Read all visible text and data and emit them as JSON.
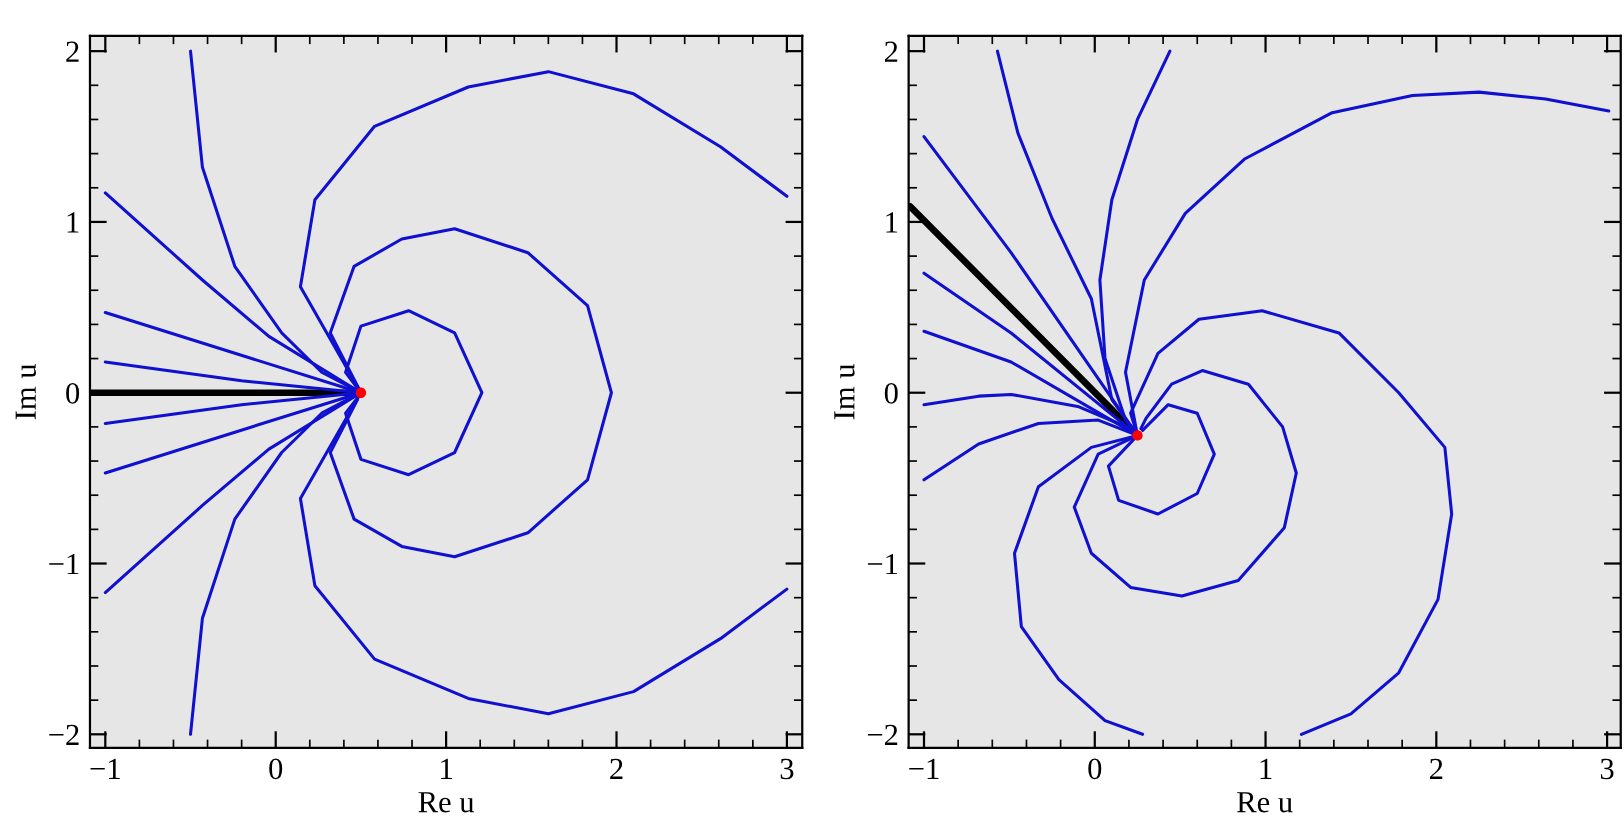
{
  "chart_data": [
    {
      "type": "line",
      "xlabel": "Re u",
      "ylabel": "Im u",
      "xlim": [
        -1.09,
        3.09
      ],
      "ylim": [
        -2.08,
        2.09
      ],
      "xticks": [
        -1,
        0,
        1,
        2,
        3
      ],
      "yticks": [
        -2,
        -1,
        0,
        1,
        2
      ],
      "series": [
        {
          "color": "#000000",
          "x": [
            -1.09,
            0.5
          ],
          "values": [
            0,
            0
          ]
        },
        {
          "color": "#1010d0",
          "x": [
            0.5,
            -0.2,
            -1
          ],
          "values": [
            0,
            0.07,
            0.18
          ]
        },
        {
          "color": "#1010d0",
          "x": [
            0.5,
            -0.3,
            -1
          ],
          "values": [
            0,
            0.25,
            0.47
          ]
        },
        {
          "color": "#1010d0",
          "x": [
            0.5,
            -0.04,
            -0.43,
            -1
          ],
          "values": [
            0,
            0.33,
            0.66,
            1.17
          ]
        },
        {
          "color": "#1010d0",
          "x": [
            0.5,
            0.27,
            0.035,
            -0.24,
            -0.43,
            -0.5
          ],
          "values": [
            0,
            0.12,
            0.35,
            0.74,
            1.32,
            2.0
          ]
        },
        {
          "color": "#1010d0",
          "x": [
            0.5,
            -0.2,
            -1
          ],
          "values": [
            0,
            -0.07,
            -0.18
          ]
        },
        {
          "color": "#1010d0",
          "x": [
            0.5,
            -0.3,
            -1
          ],
          "values": [
            0,
            -0.25,
            -0.47
          ]
        },
        {
          "color": "#1010d0",
          "x": [
            0.5,
            -0.04,
            -0.43,
            -1
          ],
          "values": [
            0,
            -0.33,
            -0.66,
            -1.17
          ]
        },
        {
          "color": "#1010d0",
          "x": [
            0.5,
            0.27,
            0.035,
            -0.24,
            -0.43,
            -0.5
          ],
          "values": [
            0,
            -0.12,
            -0.35,
            -0.74,
            -1.32,
            -2.0
          ]
        },
        {
          "color": "#1010d0",
          "x": [
            3.0,
            2.61,
            2.1,
            1.6,
            1.13,
            0.58,
            0.23,
            0.145,
            0.5,
            0.145,
            0.23,
            0.58,
            1.13,
            1.6,
            2.1,
            2.61,
            3.0
          ],
          "values": [
            1.15,
            1.44,
            1.75,
            1.88,
            1.79,
            1.56,
            1.13,
            0.62,
            0,
            -0.62,
            -1.13,
            -1.56,
            -1.79,
            -1.88,
            -1.75,
            -1.44,
            -1.15
          ]
        },
        {
          "color": "#1010d0",
          "x": [
            0.5,
            0.32,
            0.46,
            0.74,
            1.05,
            1.48,
            1.83,
            1.97,
            1.83,
            1.48,
            1.05,
            0.74,
            0.46,
            0.32,
            0.48
          ],
          "values": [
            0,
            0.35,
            0.74,
            0.9,
            0.96,
            0.82,
            0.51,
            0,
            -0.51,
            -0.82,
            -0.96,
            -0.9,
            -0.74,
            -0.35,
            -0.04
          ]
        },
        {
          "color": "#1010d0",
          "x": [
            0.5,
            0.41,
            0.5,
            0.78,
            1.05,
            1.21,
            1.05,
            0.78,
            0.5,
            0.41,
            0.48
          ],
          "values": [
            0,
            0.12,
            0.39,
            0.48,
            0.35,
            0,
            -0.35,
            -0.48,
            -0.39,
            -0.12,
            -0.03
          ]
        },
        {
          "type": "scatter",
          "color": "#ff0000",
          "x": [
            0.5
          ],
          "values": [
            0
          ]
        }
      ]
    },
    {
      "type": "line",
      "xlabel": "Re u",
      "ylabel": "Im u",
      "xlim": [
        -1.09,
        3.08
      ],
      "ylim": [
        -2.08,
        2.09
      ],
      "xticks": [
        -1,
        0,
        1,
        2,
        3
      ],
      "yticks": [
        -2,
        -1,
        0,
        1,
        2
      ],
      "series": [
        {
          "color": "#000000",
          "x": [
            -1.08,
            0.25
          ],
          "values": [
            1.09,
            -0.25
          ]
        },
        {
          "color": "#1010d0",
          "x": [
            -1.0,
            -0.49,
            0.25
          ],
          "values": [
            1.5,
            0.82,
            -0.25
          ]
        },
        {
          "color": "#1010d0",
          "x": [
            -0.57,
            -0.45,
            -0.25,
            -0.02,
            0.1,
            0.25
          ],
          "values": [
            2.0,
            1.52,
            1.02,
            0.55,
            -0.04,
            -0.25
          ]
        },
        {
          "color": "#1010d0",
          "x": [
            0.44,
            0.25,
            0.1,
            0.03,
            0.06,
            0.18,
            0.25
          ],
          "values": [
            2.0,
            1.6,
            1.13,
            0.66,
            0.2,
            -0.16,
            -0.25
          ]
        },
        {
          "color": "#1010d0",
          "x": [
            0.25,
            0.18,
            0.29,
            0.53,
            0.88,
            1.39,
            1.86,
            2.25,
            2.64,
            3.01
          ],
          "values": [
            -0.25,
            0.12,
            0.66,
            1.05,
            1.37,
            1.64,
            1.74,
            1.76,
            1.72,
            1.65
          ]
        },
        {
          "color": "#1010d0",
          "x": [
            -1.0,
            -0.49,
            0.25
          ],
          "values": [
            0.7,
            0.35,
            -0.25
          ]
        },
        {
          "color": "#1010d0",
          "x": [
            -1.0,
            -0.49,
            0.25
          ],
          "values": [
            0.36,
            0.18,
            -0.25
          ]
        },
        {
          "color": "#1010d0",
          "x": [
            -1.0,
            -0.68,
            -0.49,
            -0.1,
            0.14,
            0.25
          ],
          "values": [
            -0.07,
            -0.02,
            -0.01,
            -0.08,
            -0.18,
            -0.25
          ]
        },
        {
          "color": "#1010d0",
          "x": [
            -1.0,
            -0.68,
            -0.33,
            0.02,
            0.25
          ],
          "values": [
            -0.51,
            -0.3,
            -0.18,
            -0.16,
            -0.25
          ]
        },
        {
          "color": "#1010d0",
          "x": [
            0.25,
            -0.02,
            -0.33,
            -0.47,
            -0.43,
            -0.21,
            0.06,
            0.28
          ],
          "values": [
            -0.25,
            -0.32,
            -0.55,
            -0.94,
            -1.37,
            -1.68,
            -1.92,
            -2.0
          ]
        },
        {
          "color": "#1010d0",
          "x": [
            0.25,
            0.02,
            -0.12,
            -0.02,
            0.21,
            0.51,
            0.84,
            1.11,
            1.18,
            1.1,
            0.9,
            0.63,
            0.45,
            0.3,
            0.27
          ],
          "values": [
            -0.25,
            -0.36,
            -0.67,
            -0.94,
            -1.14,
            -1.19,
            -1.1,
            -0.79,
            -0.47,
            -0.2,
            0.05,
            0.13,
            0.05,
            -0.15,
            -0.21
          ]
        },
        {
          "color": "#1010d0",
          "x": [
            0.25,
            0.08,
            0.14,
            0.37,
            0.6,
            0.7,
            0.6,
            0.43,
            0.28
          ],
          "values": [
            -0.25,
            -0.43,
            -0.63,
            -0.71,
            -0.59,
            -0.36,
            -0.12,
            -0.07,
            -0.22
          ]
        },
        {
          "color": "#1010d0",
          "x": [
            0.25,
            0.21,
            0.37,
            0.61,
            0.98,
            1.43,
            1.78,
            2.05,
            2.09,
            2.01,
            1.78,
            1.5,
            1.21
          ],
          "values": [
            -0.25,
            -0.12,
            0.23,
            0.43,
            0.48,
            0.35,
            0.0,
            -0.32,
            -0.71,
            -1.21,
            -1.64,
            -1.88,
            -2.0
          ]
        },
        {
          "type": "scatter",
          "color": "#ff0000",
          "x": [
            0.25
          ],
          "values": [
            -0.25
          ]
        }
      ]
    }
  ]
}
